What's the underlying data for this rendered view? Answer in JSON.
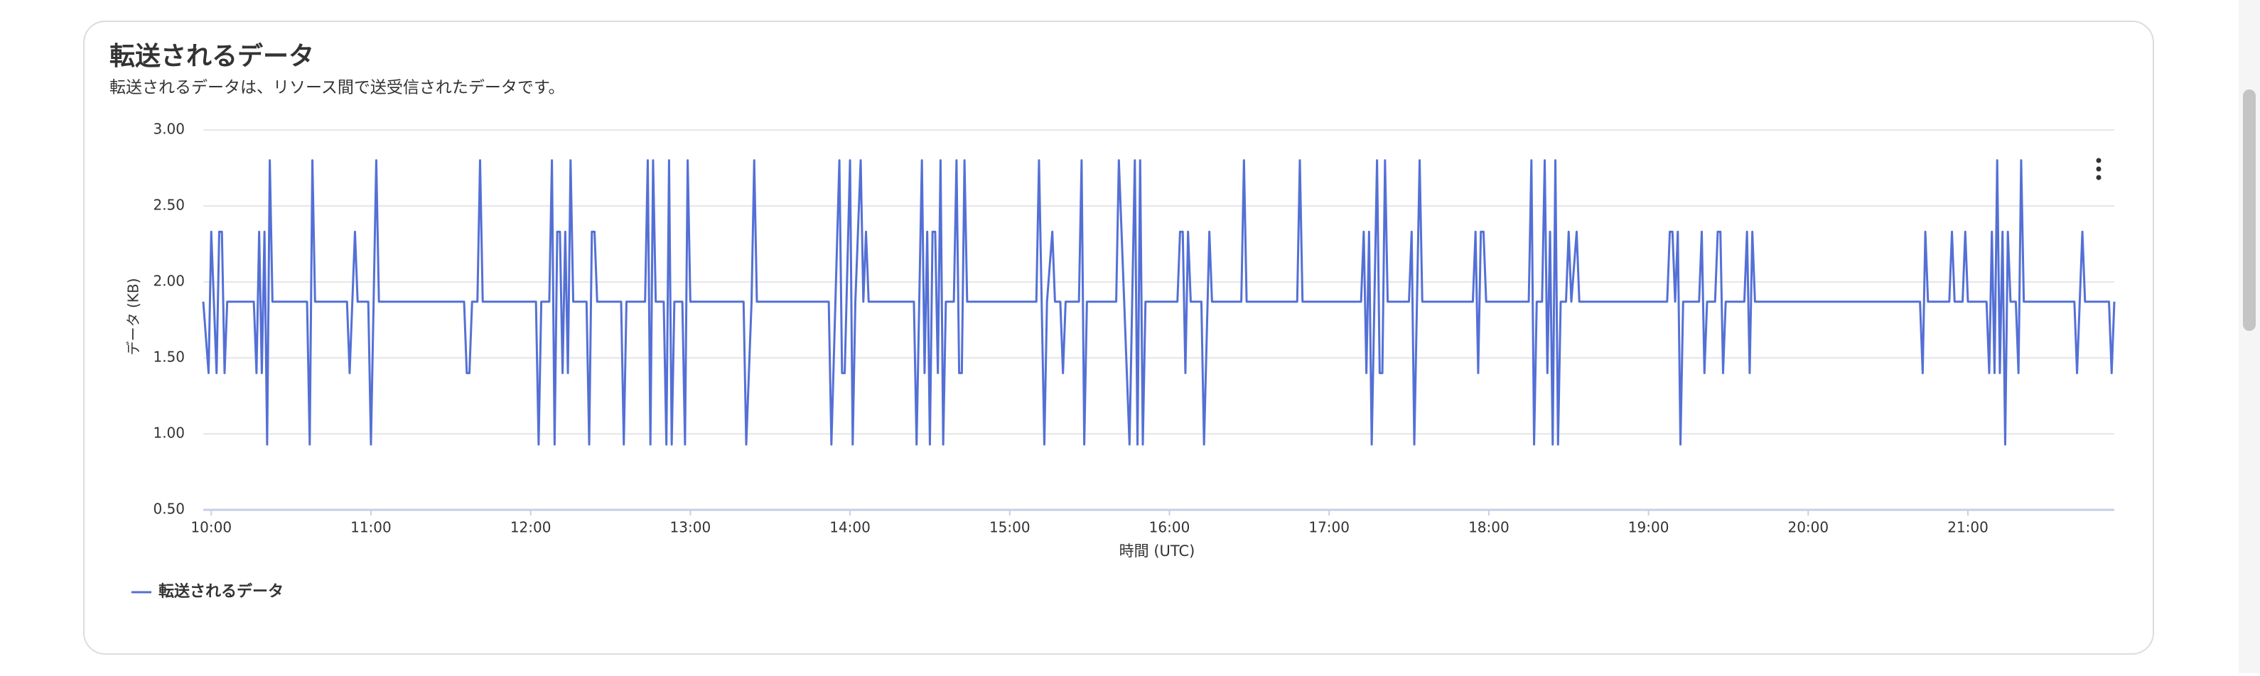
{
  "chart_data": {
    "type": "line",
    "title": "転送されるデータ",
    "subtitle": "転送されるデータは、リソース間で送受信されたデータです。",
    "x_label": "時間 (UTC)",
    "y_label": "データ (KB)",
    "x": [
      "09:57",
      "09:59",
      "10:00",
      "10:02",
      "10:03",
      "10:04",
      "10:05",
      "10:06",
      "10:16",
      "10:17",
      "10:18",
      "10:19",
      "10:20",
      "10:21",
      "10:22",
      "10:23",
      "10:36",
      "10:37",
      "10:38",
      "10:39",
      "10:51",
      "10:52",
      "10:54",
      "10:55",
      "10:59",
      "11:00",
      "11:02",
      "11:03",
      "11:35",
      "11:36",
      "11:37",
      "11:38",
      "11:40",
      "11:41",
      "11:42",
      "12:02",
      "12:03",
      "12:04",
      "12:07",
      "12:08",
      "12:09",
      "12:10",
      "12:11",
      "12:12",
      "12:13",
      "12:14",
      "12:15",
      "12:16",
      "12:21",
      "12:22",
      "12:23",
      "12:24",
      "12:25",
      "12:34",
      "12:35",
      "12:36",
      "12:43",
      "12:44",
      "12:45",
      "12:46",
      "12:47",
      "12:50",
      "12:51",
      "12:52",
      "12:53",
      "12:54",
      "12:57",
      "12:58",
      "12:59",
      "13:00",
      "13:20",
      "13:21",
      "13:23",
      "13:24",
      "13:25",
      "13:52",
      "13:53",
      "13:56",
      "13:57",
      "13:58",
      "14:00",
      "14:01",
      "14:02",
      "14:04",
      "14:05",
      "14:06",
      "14:07",
      "14:24",
      "14:25",
      "14:27",
      "14:28",
      "14:29",
      "14:30",
      "14:31",
      "14:32",
      "14:33",
      "14:34",
      "14:35",
      "14:36",
      "14:39",
      "14:40",
      "14:41",
      "14:42",
      "14:43",
      "14:44",
      "15:10",
      "15:11",
      "15:13",
      "15:14",
      "15:16",
      "15:17",
      "15:19",
      "15:20",
      "15:21",
      "15:26",
      "15:27",
      "15:28",
      "15:29",
      "15:40",
      "15:41",
      "15:43",
      "15:45",
      "15:47",
      "15:48",
      "15:49",
      "15:50",
      "15:51",
      "16:03",
      "16:04",
      "16:05",
      "16:06",
      "16:07",
      "16:08",
      "16:12",
      "16:13",
      "16:15",
      "16:16",
      "16:27",
      "16:28",
      "16:29",
      "16:48",
      "16:49",
      "16:50",
      "17:12",
      "17:13",
      "17:14",
      "17:15",
      "17:16",
      "17:18",
      "17:19",
      "17:20",
      "17:21",
      "17:22",
      "17:30",
      "17:31",
      "17:32",
      "17:34",
      "17:35",
      "17:54",
      "17:55",
      "17:56",
      "17:57",
      "17:58",
      "17:59",
      "18:15",
      "18:16",
      "18:17",
      "18:18",
      "18:20",
      "18:21",
      "18:22",
      "18:23",
      "18:24",
      "18:25",
      "18:26",
      "18:27",
      "18:29",
      "18:30",
      "18:31",
      "18:33",
      "18:34",
      "19:07",
      "19:08",
      "19:09",
      "19:10",
      "19:11",
      "19:12",
      "19:13",
      "19:19",
      "19:20",
      "19:21",
      "19:22",
      "19:25",
      "19:26",
      "19:27",
      "19:28",
      "19:29",
      "19:36",
      "19:37",
      "19:38",
      "19:39",
      "19:40",
      "20:42",
      "20:43",
      "20:44",
      "20:45",
      "20:53",
      "20:54",
      "20:55",
      "20:58",
      "20:59",
      "21:00",
      "21:07",
      "21:08",
      "21:09",
      "21:10",
      "21:11",
      "21:12",
      "21:13",
      "21:14",
      "21:15",
      "21:16",
      "21:18",
      "21:19",
      "21:20",
      "21:21",
      "21:40",
      "21:41",
      "21:43",
      "21:44",
      "21:53",
      "21:54",
      "21:55"
    ],
    "series": [
      {
        "name": "転送されるデータ",
        "color": "#5470d6",
        "values": [
          1.87,
          1.4,
          2.33,
          1.4,
          2.33,
          2.33,
          1.4,
          1.87,
          1.87,
          1.4,
          2.33,
          1.4,
          2.33,
          0.93,
          2.8,
          1.87,
          1.87,
          0.93,
          2.8,
          1.87,
          1.87,
          1.4,
          2.33,
          1.87,
          1.87,
          0.93,
          2.8,
          1.87,
          1.87,
          1.4,
          1.4,
          1.87,
          1.87,
          2.8,
          1.87,
          1.87,
          0.93,
          1.87,
          1.87,
          2.8,
          0.93,
          2.33,
          2.33,
          1.4,
          2.33,
          1.4,
          2.8,
          1.87,
          1.87,
          0.93,
          2.33,
          2.33,
          1.87,
          1.87,
          0.93,
          1.87,
          1.87,
          2.8,
          0.93,
          2.8,
          1.87,
          1.87,
          0.93,
          2.8,
          0.93,
          1.87,
          1.87,
          0.93,
          2.8,
          1.87,
          1.87,
          0.93,
          1.87,
          2.8,
          1.87,
          1.87,
          0.93,
          2.8,
          1.4,
          1.4,
          2.8,
          0.93,
          1.87,
          2.8,
          1.87,
          2.33,
          1.87,
          1.87,
          0.93,
          2.8,
          1.4,
          2.33,
          0.93,
          2.33,
          2.33,
          1.4,
          2.8,
          0.93,
          1.87,
          1.87,
          2.8,
          1.4,
          1.4,
          2.8,
          1.87,
          1.87,
          2.8,
          0.93,
          1.87,
          2.33,
          1.87,
          1.87,
          1.4,
          1.87,
          1.87,
          2.8,
          0.93,
          1.87,
          1.87,
          2.8,
          1.87,
          0.93,
          2.8,
          0.93,
          2.8,
          0.93,
          1.87,
          1.87,
          2.33,
          2.33,
          1.4,
          2.33,
          1.87,
          1.87,
          0.93,
          2.33,
          1.87,
          1.87,
          2.8,
          1.87,
          1.87,
          2.8,
          1.87,
          1.87,
          2.33,
          1.4,
          2.33,
          0.93,
          2.8,
          1.4,
          1.4,
          2.8,
          1.87,
          1.87,
          2.33,
          0.93,
          2.8,
          1.87,
          1.87,
          2.33,
          1.4,
          2.33,
          2.33,
          1.87,
          1.87,
          2.8,
          0.93,
          1.87,
          1.87,
          2.8,
          1.4,
          2.33,
          0.93,
          2.8,
          0.93,
          1.87,
          1.87,
          2.33,
          1.87,
          2.33,
          1.87,
          1.87,
          2.33,
          2.33,
          1.87,
          2.33,
          0.93,
          1.87,
          1.87,
          2.33,
          1.4,
          1.87,
          1.87,
          2.33,
          2.33,
          1.4,
          1.87,
          1.87,
          2.33,
          1.4,
          2.33,
          1.87,
          1.87,
          1.4,
          2.33,
          1.87,
          1.87,
          2.33,
          1.87,
          1.87,
          2.33,
          1.87,
          1.87,
          1.4,
          2.33,
          1.4,
          2.8,
          1.4,
          2.33,
          0.93,
          2.33,
          1.87,
          1.87,
          1.4,
          2.8,
          1.87,
          1.87,
          1.4,
          2.33,
          1.87,
          1.87,
          1.4,
          1.87
        ]
      }
    ],
    "xlim": [
      "09:57",
      "21:55"
    ],
    "xticks": [
      "10:00",
      "11:00",
      "12:00",
      "13:00",
      "14:00",
      "15:00",
      "16:00",
      "17:00",
      "18:00",
      "19:00",
      "20:00",
      "21:00"
    ],
    "ylim": [
      0.5,
      3.0
    ],
    "yticks": [
      {
        "value": 0.5,
        "label": "0.50"
      },
      {
        "value": 1.0,
        "label": "1.00"
      },
      {
        "value": 1.5,
        "label": "1.50"
      },
      {
        "value": 2.0,
        "label": "2.00"
      },
      {
        "value": 2.5,
        "label": "2.50"
      },
      {
        "value": 3.0,
        "label": "3.00"
      }
    ],
    "grid": true,
    "legend": "bottom-left"
  }
}
